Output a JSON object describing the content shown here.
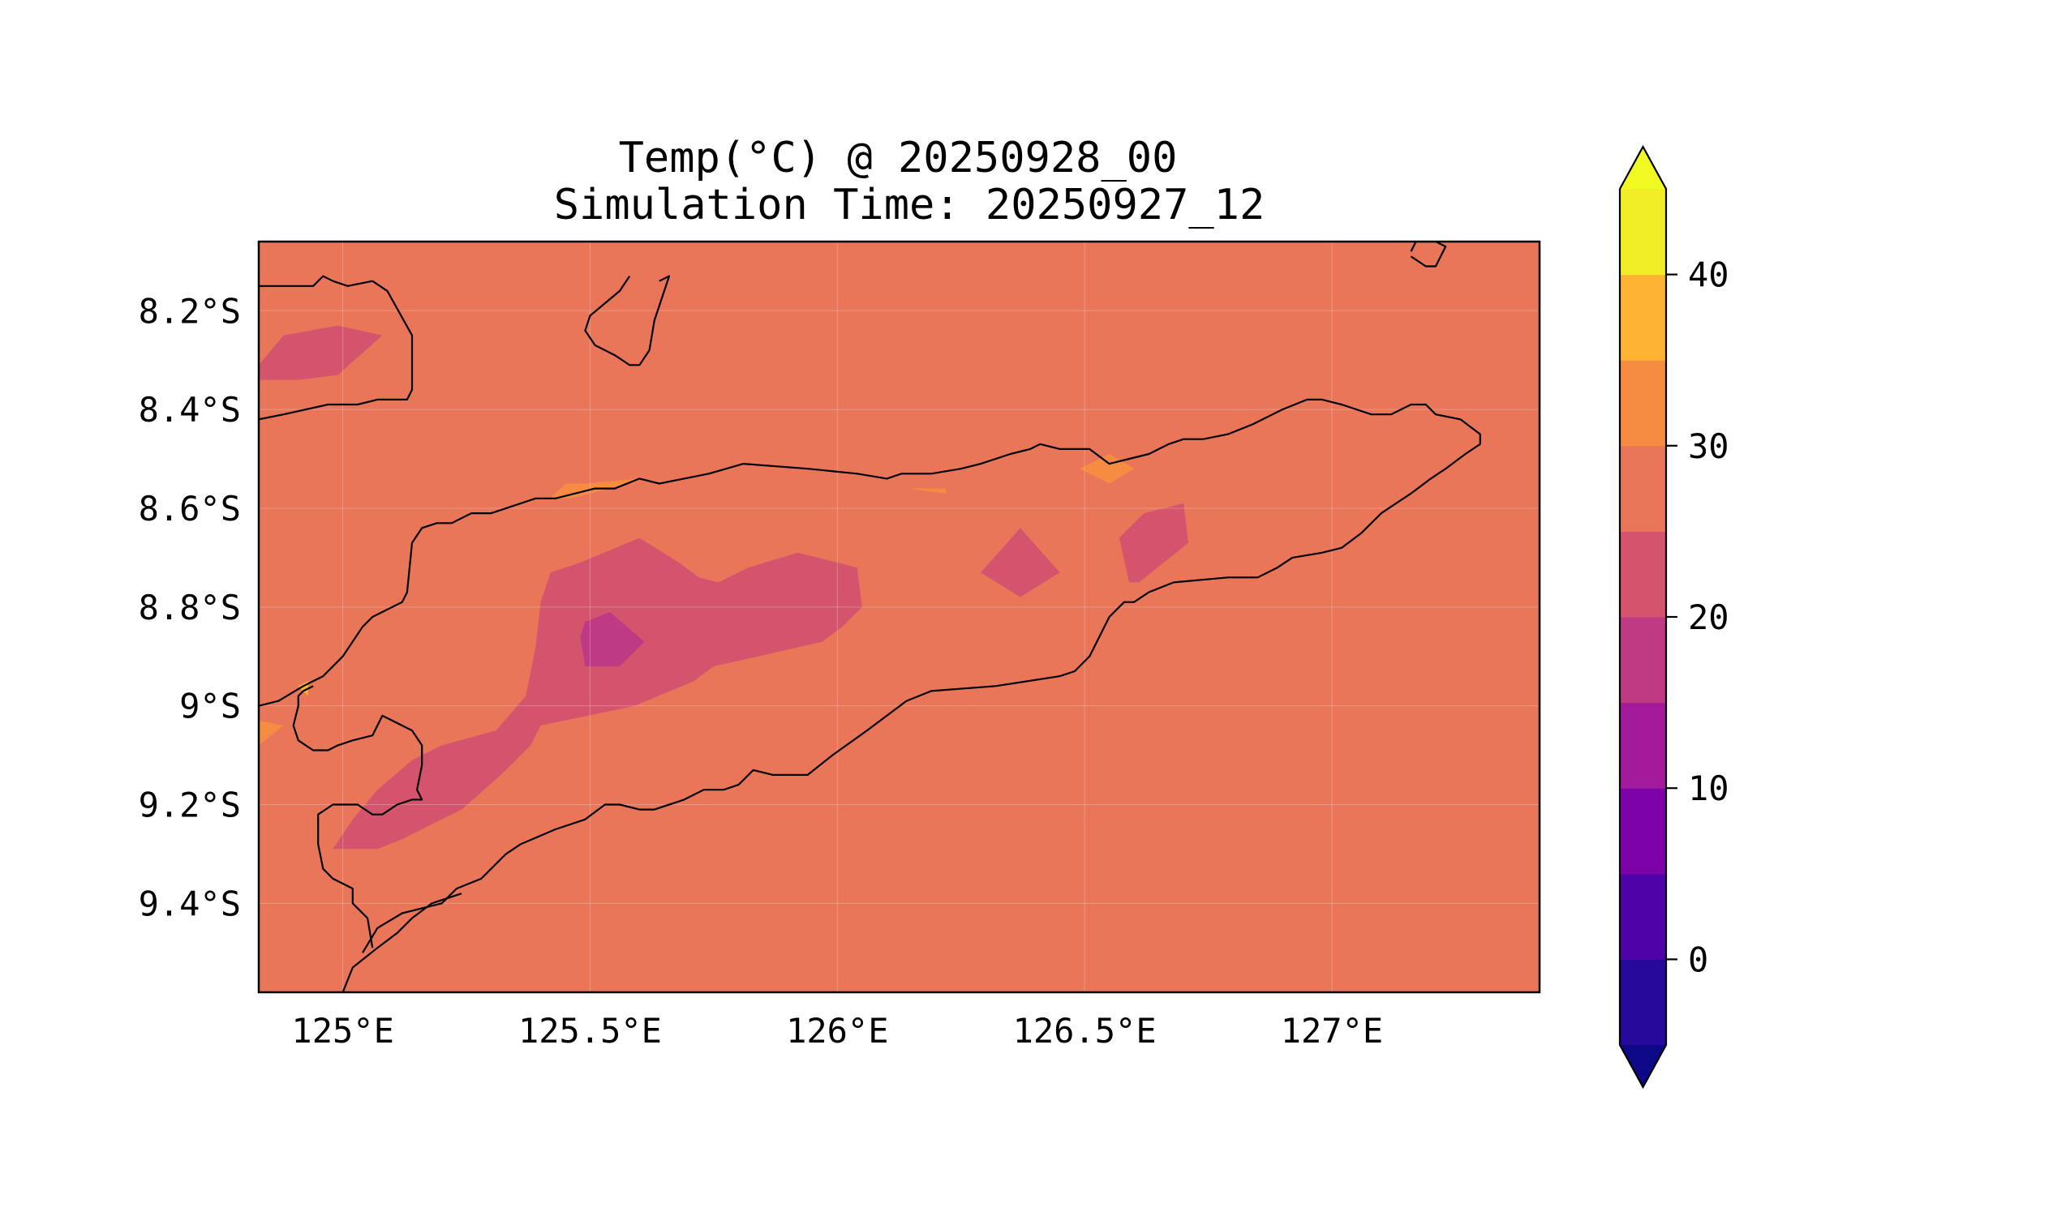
{
  "title": {
    "line1": "Temp(°C) @ 20250928_00",
    "line2": "Simulation Time: 20250927_12"
  },
  "chart_data": {
    "type": "heatmap",
    "title": "Temp(°C) @ 20250928_00",
    "subtitle": "Simulation Time: 20250927_12",
    "x_ticks": [
      {
        "value": 125.0,
        "label": "125°E"
      },
      {
        "value": 125.5,
        "label": "125.5°E"
      },
      {
        "value": 126.0,
        "label": "126°E"
      },
      {
        "value": 126.5,
        "label": "126.5°E"
      },
      {
        "value": 127.0,
        "label": "127°E"
      }
    ],
    "y_ticks": [
      {
        "value": -8.2,
        "label": "8.2°S"
      },
      {
        "value": -8.4,
        "label": "8.4°S"
      },
      {
        "value": -8.6,
        "label": "8.6°S"
      },
      {
        "value": -8.8,
        "label": "8.8°S"
      },
      {
        "value": -9.0,
        "label": "9°S"
      },
      {
        "value": -9.2,
        "label": "9.2°S"
      },
      {
        "value": -9.4,
        "label": "9.4°S"
      }
    ],
    "xlim": [
      124.83,
      127.42
    ],
    "ylim": [
      -9.58,
      -8.06
    ],
    "grid": true,
    "background_level": [
      25,
      30
    ],
    "background_color": "#ea7659",
    "regions": [
      {
        "level": [
          20,
          25
        ],
        "color": "#d5546d",
        "points": [
          [
            124.83,
            -8.31
          ],
          [
            124.88,
            -8.25
          ],
          [
            124.99,
            -8.23
          ],
          [
            125.08,
            -8.25
          ],
          [
            124.99,
            -8.33
          ],
          [
            124.91,
            -8.34
          ],
          [
            124.83,
            -8.34
          ]
        ]
      },
      {
        "level": [
          20,
          25
        ],
        "color": "#d5546d",
        "points": [
          [
            125.4,
            -8.79
          ],
          [
            125.42,
            -8.73
          ],
          [
            125.48,
            -8.71
          ],
          [
            125.6,
            -8.66
          ],
          [
            125.68,
            -8.71
          ],
          [
            125.72,
            -8.74
          ],
          [
            125.76,
            -8.75
          ],
          [
            125.82,
            -8.72
          ],
          [
            125.92,
            -8.69
          ],
          [
            126.04,
            -8.72
          ],
          [
            126.05,
            -8.8
          ],
          [
            126.01,
            -8.84
          ],
          [
            125.97,
            -8.87
          ],
          [
            125.84,
            -8.9
          ],
          [
            125.75,
            -8.92
          ],
          [
            125.71,
            -8.95
          ],
          [
            125.59,
            -9.0
          ],
          [
            125.4,
            -9.04
          ],
          [
            125.38,
            -9.08
          ],
          [
            125.32,
            -9.14
          ],
          [
            125.24,
            -9.21
          ],
          [
            125.12,
            -9.27
          ],
          [
            125.07,
            -9.29
          ],
          [
            124.98,
            -9.29
          ],
          [
            125.02,
            -9.23
          ],
          [
            125.07,
            -9.17
          ],
          [
            125.14,
            -9.11
          ],
          [
            125.2,
            -9.08
          ],
          [
            125.31,
            -9.05
          ],
          [
            125.37,
            -8.98
          ],
          [
            125.39,
            -8.88
          ]
        ]
      },
      {
        "level": [
          15,
          20
        ],
        "color": "#be3a85",
        "points": [
          [
            125.49,
            -8.83
          ],
          [
            125.54,
            -8.81
          ],
          [
            125.61,
            -8.87
          ],
          [
            125.56,
            -8.92
          ],
          [
            125.49,
            -8.92
          ],
          [
            125.48,
            -8.86
          ]
        ]
      },
      {
        "level": [
          20,
          25
        ],
        "color": "#d5546d",
        "points": [
          [
            126.29,
            -8.73
          ],
          [
            126.37,
            -8.64
          ],
          [
            126.45,
            -8.73
          ],
          [
            126.37,
            -8.78
          ]
        ]
      },
      {
        "level": [
          20,
          25
        ],
        "color": "#d5546d",
        "points": [
          [
            126.57,
            -8.66
          ],
          [
            126.62,
            -8.61
          ],
          [
            126.7,
            -8.59
          ],
          [
            126.71,
            -8.67
          ],
          [
            126.61,
            -8.75
          ],
          [
            126.59,
            -8.75
          ]
        ]
      },
      {
        "level": [
          30,
          35
        ],
        "color": "#f58c41",
        "points": [
          [
            125.6,
            -8.54
          ],
          [
            125.54,
            -8.56
          ],
          [
            125.46,
            -8.58
          ],
          [
            125.42,
            -8.58
          ],
          [
            125.45,
            -8.55
          ],
          [
            125.49,
            -8.55
          ]
        ]
      },
      {
        "level": [
          30,
          35
        ],
        "color": "#f58c41",
        "points": [
          [
            126.49,
            -8.52
          ],
          [
            126.55,
            -8.49
          ],
          [
            126.6,
            -8.52
          ],
          [
            126.55,
            -8.55
          ]
        ]
      },
      {
        "level": [
          30,
          35
        ],
        "color": "#f58c41",
        "points": [
          [
            126.14,
            -8.56
          ],
          [
            126.22,
            -8.56
          ],
          [
            126.22,
            -8.57
          ]
        ]
      },
      {
        "level": [
          30,
          35
        ],
        "color": "#f58c41",
        "points": [
          [
            124.83,
            -9.03
          ],
          [
            124.88,
            -9.04
          ],
          [
            124.83,
            -9.08
          ]
        ]
      },
      {
        "level": [
          35,
          40
        ],
        "color": "#fdb32f",
        "points": [
          [
            124.91,
            -8.96
          ],
          [
            124.93,
            -8.95
          ],
          [
            124.93,
            -8.98
          ]
        ]
      }
    ],
    "colorbar": {
      "ticks": [
        0,
        10,
        20,
        30,
        40
      ],
      "bounds": [
        -5,
        0,
        5,
        10,
        15,
        20,
        25,
        30,
        35,
        40,
        45
      ],
      "colors": [
        "#250a9c",
        "#4e02a7",
        "#7c03a8",
        "#a11b9b",
        "#c03a83",
        "#d5546d",
        "#ea7659",
        "#f58c41",
        "#fdb32f",
        "#f1ed27"
      ],
      "under_color": "#0d0887",
      "over_color": "#f0f921",
      "extend": "both"
    }
  },
  "coastlines": [
    [
      [
        124.83,
        -8.15
      ],
      [
        124.94,
        -8.15
      ],
      [
        124.96,
        -8.13
      ],
      [
        124.98,
        -8.14
      ],
      [
        125.01,
        -8.15
      ],
      [
        125.06,
        -8.14
      ],
      [
        125.09,
        -8.16
      ],
      [
        125.14,
        -8.25
      ],
      [
        125.14,
        -8.36
      ],
      [
        125.13,
        -8.38
      ],
      [
        125.07,
        -8.38
      ],
      [
        125.03,
        -8.39
      ],
      [
        124.97,
        -8.39
      ],
      [
        124.88,
        -8.41
      ],
      [
        124.83,
        -8.42
      ]
    ],
    [
      [
        125.64,
        -8.14
      ],
      [
        125.66,
        -8.13
      ],
      [
        125.63,
        -8.22
      ],
      [
        125.62,
        -8.28
      ],
      [
        125.6,
        -8.31
      ],
      [
        125.58,
        -8.31
      ],
      [
        125.55,
        -8.29
      ],
      [
        125.51,
        -8.27
      ],
      [
        125.49,
        -8.24
      ],
      [
        125.5,
        -8.21
      ],
      [
        125.56,
        -8.16
      ],
      [
        125.58,
        -8.13
      ]
    ],
    [
      [
        127.16,
        -8.08
      ],
      [
        127.17,
        -8.06
      ],
      [
        127.21,
        -8.06
      ],
      [
        127.23,
        -8.07
      ],
      [
        127.22,
        -8.09
      ],
      [
        127.21,
        -8.11
      ],
      [
        127.19,
        -8.11
      ],
      [
        127.16,
        -8.09
      ]
    ],
    [
      [
        124.83,
        -9.0
      ],
      [
        124.87,
        -8.99
      ],
      [
        124.92,
        -8.96
      ],
      [
        124.96,
        -8.94
      ],
      [
        125.0,
        -8.9
      ],
      [
        125.04,
        -8.84
      ],
      [
        125.06,
        -8.82
      ],
      [
        125.08,
        -8.81
      ],
      [
        125.1,
        -8.8
      ],
      [
        125.12,
        -8.79
      ],
      [
        125.13,
        -8.77
      ],
      [
        125.14,
        -8.67
      ],
      [
        125.16,
        -8.64
      ],
      [
        125.19,
        -8.63
      ],
      [
        125.22,
        -8.63
      ],
      [
        125.26,
        -8.61
      ],
      [
        125.3,
        -8.61
      ],
      [
        125.33,
        -8.6
      ],
      [
        125.39,
        -8.58
      ],
      [
        125.43,
        -8.58
      ],
      [
        125.47,
        -8.57
      ],
      [
        125.51,
        -8.56
      ],
      [
        125.55,
        -8.56
      ],
      [
        125.6,
        -8.54
      ],
      [
        125.64,
        -8.55
      ],
      [
        125.69,
        -8.54
      ],
      [
        125.74,
        -8.53
      ],
      [
        125.81,
        -8.51
      ],
      [
        125.94,
        -8.52
      ],
      [
        126.04,
        -8.53
      ],
      [
        126.1,
        -8.54
      ],
      [
        126.13,
        -8.53
      ],
      [
        126.19,
        -8.53
      ],
      [
        126.25,
        -8.52
      ],
      [
        126.29,
        -8.51
      ],
      [
        126.35,
        -8.49
      ],
      [
        126.39,
        -8.48
      ],
      [
        126.41,
        -8.47
      ],
      [
        126.45,
        -8.48
      ],
      [
        126.51,
        -8.48
      ],
      [
        126.55,
        -8.51
      ],
      [
        126.63,
        -8.49
      ],
      [
        126.67,
        -8.47
      ],
      [
        126.7,
        -8.46
      ],
      [
        126.74,
        -8.46
      ],
      [
        126.79,
        -8.45
      ],
      [
        126.84,
        -8.43
      ],
      [
        126.9,
        -8.4
      ],
      [
        126.95,
        -8.38
      ],
      [
        126.98,
        -8.38
      ],
      [
        127.02,
        -8.39
      ],
      [
        127.08,
        -8.41
      ],
      [
        127.12,
        -8.41
      ],
      [
        127.16,
        -8.39
      ],
      [
        127.19,
        -8.39
      ],
      [
        127.21,
        -8.41
      ],
      [
        127.26,
        -8.42
      ],
      [
        127.3,
        -8.45
      ],
      [
        127.3,
        -8.47
      ],
      [
        127.27,
        -8.49
      ],
      [
        127.23,
        -8.52
      ],
      [
        127.2,
        -8.54
      ],
      [
        127.16,
        -8.57
      ],
      [
        127.1,
        -8.61
      ],
      [
        127.06,
        -8.65
      ],
      [
        127.02,
        -8.68
      ],
      [
        126.98,
        -8.69
      ],
      [
        126.92,
        -8.7
      ],
      [
        126.89,
        -8.72
      ],
      [
        126.85,
        -8.74
      ],
      [
        126.79,
        -8.74
      ],
      [
        126.68,
        -8.75
      ],
      [
        126.63,
        -8.77
      ],
      [
        126.6,
        -8.79
      ],
      [
        126.58,
        -8.79
      ],
      [
        126.55,
        -8.82
      ],
      [
        126.51,
        -8.9
      ],
      [
        126.48,
        -8.93
      ],
      [
        126.45,
        -8.94
      ],
      [
        126.32,
        -8.96
      ],
      [
        126.19,
        -8.97
      ],
      [
        126.14,
        -8.99
      ],
      [
        126.06,
        -9.05
      ],
      [
        125.99,
        -9.1
      ],
      [
        125.94,
        -9.14
      ],
      [
        125.87,
        -9.14
      ],
      [
        125.83,
        -9.13
      ],
      [
        125.8,
        -9.16
      ],
      [
        125.77,
        -9.17
      ],
      [
        125.73,
        -9.17
      ],
      [
        125.69,
        -9.19
      ],
      [
        125.63,
        -9.21
      ],
      [
        125.6,
        -9.21
      ],
      [
        125.56,
        -9.2
      ],
      [
        125.53,
        -9.2
      ],
      [
        125.49,
        -9.23
      ],
      [
        125.43,
        -9.25
      ],
      [
        125.36,
        -9.28
      ],
      [
        125.33,
        -9.3
      ],
      [
        125.3,
        -9.33
      ],
      [
        125.28,
        -9.35
      ],
      [
        125.23,
        -9.37
      ],
      [
        125.2,
        -9.4
      ],
      [
        125.16,
        -9.41
      ],
      [
        125.12,
        -9.42
      ],
      [
        125.07,
        -9.45
      ],
      [
        125.04,
        -9.5
      ]
    ],
    [
      [
        125.0,
        -9.58
      ],
      [
        125.02,
        -9.53
      ],
      [
        125.07,
        -9.49
      ],
      [
        125.11,
        -9.46
      ],
      [
        125.14,
        -9.43
      ],
      [
        125.18,
        -9.4
      ],
      [
        125.24,
        -9.38
      ]
    ],
    [
      [
        125.06,
        -9.49
      ],
      [
        125.05,
        -9.43
      ],
      [
        125.02,
        -9.4
      ],
      [
        125.02,
        -9.37
      ],
      [
        124.98,
        -9.35
      ],
      [
        124.96,
        -9.33
      ],
      [
        124.95,
        -9.28
      ],
      [
        124.95,
        -9.22
      ],
      [
        124.98,
        -9.2
      ],
      [
        125.03,
        -9.2
      ],
      [
        125.06,
        -9.22
      ],
      [
        125.08,
        -9.22
      ],
      [
        125.11,
        -9.2
      ],
      [
        125.14,
        -9.19
      ],
      [
        125.16,
        -9.19
      ],
      [
        125.15,
        -9.17
      ],
      [
        125.16,
        -9.12
      ],
      [
        125.16,
        -9.08
      ],
      [
        125.14,
        -9.05
      ],
      [
        125.1,
        -9.03
      ],
      [
        125.08,
        -9.02
      ],
      [
        125.07,
        -9.04
      ],
      [
        125.06,
        -9.06
      ],
      [
        125.02,
        -9.07
      ],
      [
        124.99,
        -9.08
      ],
      [
        124.97,
        -9.09
      ],
      [
        124.94,
        -9.09
      ],
      [
        124.91,
        -9.07
      ],
      [
        124.9,
        -9.04
      ],
      [
        124.91,
        -9.0
      ],
      [
        124.91,
        -8.98
      ],
      [
        124.92,
        -8.97
      ],
      [
        124.94,
        -8.96
      ]
    ]
  ]
}
